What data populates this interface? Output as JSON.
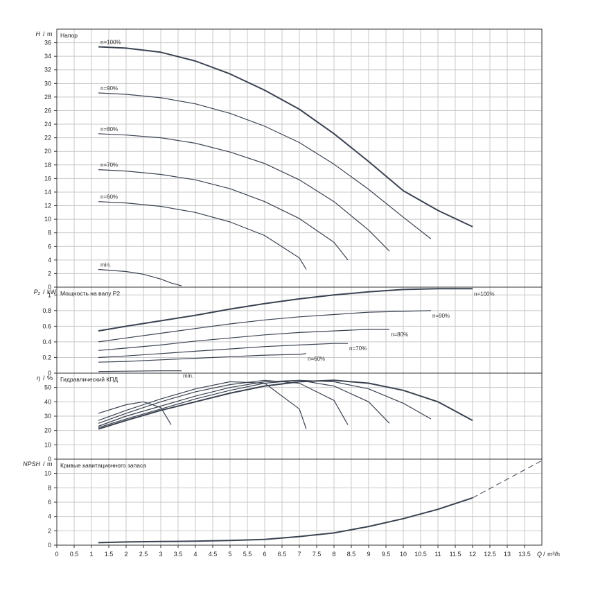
{
  "chart_data": {
    "type": "line",
    "x": {
      "label": "Q",
      "unit": "m³/h",
      "range": [
        0,
        14
      ],
      "ticks": [
        "0",
        "0.5",
        "1",
        "1.5",
        "2",
        "2.5",
        "3",
        "3.5",
        "4",
        "4.5",
        "5",
        "5.5",
        "6",
        "6.5",
        "7",
        "7.5",
        "8",
        "8.5",
        "9",
        "9.5",
        "10",
        "10.5",
        "11",
        "11.5",
        "12",
        "12.5",
        "13",
        "13.5"
      ]
    },
    "panels": [
      {
        "id": "head",
        "title": "Напор",
        "ylabel": "H",
        "yunit": "m",
        "ylim": [
          0,
          38
        ],
        "yticks": [
          "0",
          "2",
          "4",
          "6",
          "8",
          "10",
          "12",
          "14",
          "16",
          "18",
          "20",
          "22",
          "24",
          "26",
          "28",
          "30",
          "32",
          "34",
          "36"
        ],
        "series": [
          {
            "name": "n=100%",
            "x": [
              1.2,
              2,
              3,
              4,
              5,
              6,
              7,
              8,
              9,
              10,
              11,
              12
            ],
            "y": [
              35.4,
              35.2,
              34.6,
              33.3,
              31.4,
              29,
              26.2,
              22.6,
              18.5,
              14.2,
              11.3,
              8.9
            ]
          },
          {
            "name": "n=90%",
            "x": [
              1.2,
              2,
              3,
              4,
              5,
              6,
              7,
              8,
              9,
              10,
              10.8
            ],
            "y": [
              28.6,
              28.4,
              27.9,
              27,
              25.6,
              23.7,
              21.3,
              18.1,
              14.4,
              10.3,
              7.1
            ]
          },
          {
            "name": "n=80%",
            "x": [
              1.2,
              2,
              3,
              4,
              5,
              6,
              7,
              8,
              9,
              9.6
            ],
            "y": [
              22.6,
              22.4,
              22,
              21.2,
              19.9,
              18.2,
              15.8,
              12.6,
              8.4,
              5.3
            ]
          },
          {
            "name": "n=70%",
            "x": [
              1.2,
              2,
              3,
              4,
              5,
              6,
              7,
              8,
              8.4
            ],
            "y": [
              17.3,
              17.1,
              16.6,
              15.8,
              14.5,
              12.6,
              10.1,
              6.6,
              4
            ]
          },
          {
            "name": "n=60%",
            "x": [
              1.2,
              2,
              3,
              4,
              5,
              6,
              7,
              7.2
            ],
            "y": [
              12.6,
              12.4,
              11.9,
              11,
              9.6,
              7.6,
              4.3,
              2.6
            ]
          },
          {
            "name": "min.",
            "x": [
              1.2,
              2,
              2.5,
              3,
              3.3,
              3.6
            ],
            "y": [
              2.6,
              2.3,
              1.9,
              1.2,
              0.6,
              0.2
            ]
          }
        ],
        "curve_labels": [
          "n=100%",
          "n=90%",
          "n=80%",
          "n=70%",
          "n=60%",
          "min."
        ]
      },
      {
        "id": "power",
        "title": "Мощность на валу P2",
        "ylabel": "P₂",
        "yunit": "kW",
        "ylim": [
          0,
          1.1
        ],
        "yticks": [
          "0",
          "0.2",
          "0.4",
          "0.6",
          "0.8",
          "1"
        ],
        "series": [
          {
            "name": "n=100%",
            "x": [
              1.2,
              2,
              3,
              4,
              5,
              6,
              7,
              8,
              9,
              10,
              11,
              12
            ],
            "y": [
              0.54,
              0.6,
              0.67,
              0.74,
              0.82,
              0.89,
              0.95,
              1.0,
              1.04,
              1.07,
              1.08,
              1.08
            ]
          },
          {
            "name": "n=90%",
            "x": [
              1.2,
              2,
              3,
              4,
              5,
              6,
              7,
              8,
              9,
              10,
              10.8
            ],
            "y": [
              0.4,
              0.45,
              0.51,
              0.57,
              0.63,
              0.68,
              0.72,
              0.75,
              0.78,
              0.79,
              0.8
            ]
          },
          {
            "name": "n=80%",
            "x": [
              1.2,
              2,
              3,
              4,
              5,
              6,
              7,
              8,
              9,
              9.6
            ],
            "y": [
              0.29,
              0.32,
              0.36,
              0.41,
              0.45,
              0.49,
              0.52,
              0.54,
              0.56,
              0.56
            ]
          },
          {
            "name": "n=70%",
            "x": [
              1.2,
              2,
              3,
              4,
              5,
              6,
              7,
              8,
              8.4
            ],
            "y": [
              0.2,
              0.22,
              0.25,
              0.28,
              0.31,
              0.34,
              0.36,
              0.38,
              0.38
            ]
          },
          {
            "name": "n=60%",
            "x": [
              1.2,
              2,
              3,
              4,
              5,
              6,
              7,
              7.2
            ],
            "y": [
              0.14,
              0.15,
              0.17,
              0.19,
              0.21,
              0.23,
              0.24,
              0.25
            ]
          },
          {
            "name": "min.",
            "x": [
              1.2,
              2,
              3,
              3.6
            ],
            "y": [
              0.02,
              0.025,
              0.03,
              0.03
            ]
          }
        ],
        "curve_labels": [
          "n=100%",
          "n=90%",
          "n=80%",
          "n=70%",
          "n=60%",
          "min."
        ]
      },
      {
        "id": "efficiency",
        "title": "Гидравлический КПД",
        "ylabel": "η",
        "yunit": "%",
        "ylim": [
          0,
          60
        ],
        "yticks": [
          "0",
          "10",
          "20",
          "30",
          "40",
          "50"
        ],
        "series": [
          {
            "name": "n=100%",
            "x": [
              1.2,
              2,
              3,
              4,
              5,
              6,
              7,
              8,
              9,
              10,
              11,
              12
            ],
            "y": [
              21,
              27,
              34,
              40,
              46,
              51,
              54,
              55,
              53,
              48,
              40,
              27
            ]
          },
          {
            "name": "n=90%",
            "x": [
              1.2,
              2,
              3,
              4,
              5,
              6,
              7,
              8,
              9,
              10,
              10.8
            ],
            "y": [
              22,
              28,
              35,
              42,
              48,
              53,
              55,
              54,
              49,
              39,
              28
            ]
          },
          {
            "name": "n=80%",
            "x": [
              1.2,
              2,
              3,
              4,
              5,
              6,
              7,
              8,
              9,
              9.6
            ],
            "y": [
              23,
              30,
              37,
              44,
              50,
              54,
              55,
              51,
              40,
              25
            ]
          },
          {
            "name": "n=70%",
            "x": [
              1.2,
              2,
              3,
              4,
              5,
              6,
              7,
              8,
              8.4
            ],
            "y": [
              25,
              32,
              40,
              47,
              52,
              55,
              53,
              41,
              24
            ]
          },
          {
            "name": "n=60%",
            "x": [
              1.2,
              2,
              3,
              4,
              5,
              6,
              7,
              7.2
            ],
            "y": [
              27,
              34,
              42,
              49,
              54,
              53,
              35,
              21
            ]
          },
          {
            "name": "min.",
            "x": [
              1.2,
              2,
              2.5,
              3,
              3.3
            ],
            "y": [
              32,
              38,
              40,
              36,
              24
            ]
          }
        ],
        "curve_labels": []
      },
      {
        "id": "npsh",
        "title": "Кривые кавитационного запаса",
        "ylabel": "NPSH",
        "yunit": "m",
        "ylim": [
          0,
          12
        ],
        "yticks": [
          "0",
          "2",
          "4",
          "6",
          "8",
          "10"
        ],
        "series": [
          {
            "name": "",
            "x": [
              1.2,
              2,
              3,
              4,
              5,
              6,
              7,
              8,
              9,
              10,
              11,
              12
            ],
            "y": [
              0.35,
              0.45,
              0.5,
              0.55,
              0.65,
              0.8,
              1.2,
              1.7,
              2.6,
              3.7,
              5.0,
              6.6
            ]
          }
        ],
        "extrapolation": {
          "x": [
            12,
            12.5,
            13,
            13.5,
            14
          ],
          "y": [
            6.6,
            7.9,
            9.2,
            10.5,
            11.8
          ]
        },
        "curve_labels": []
      }
    ]
  }
}
